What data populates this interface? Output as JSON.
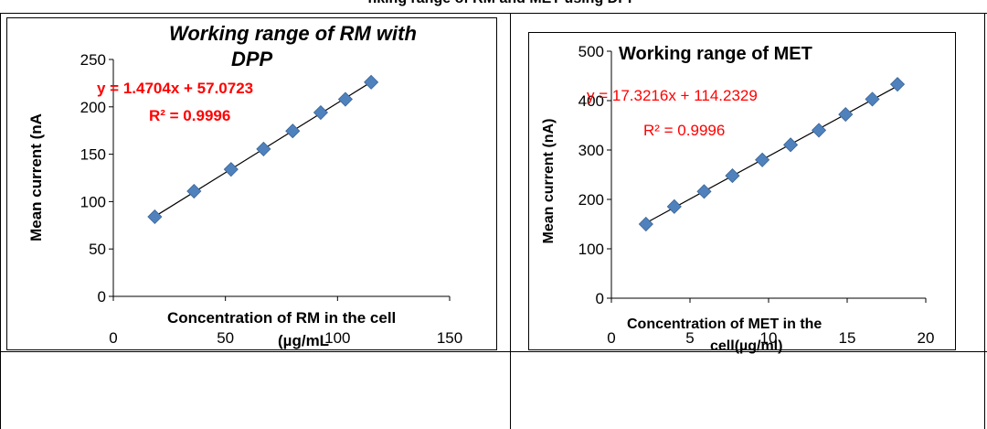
{
  "header_fragment": "nking range of RM and MET using DPP",
  "colors": {
    "marker": "#4F81BD",
    "marker_edge": "#3A6496",
    "trendline": "#000000",
    "equation_text": "#FF0000",
    "axis": "#000000"
  },
  "chart_data": [
    {
      "type": "scatter",
      "marker": "diamond",
      "title": "Working range of RM with DPP",
      "title_lines": [
        "Working range of RM with",
        "DPP"
      ],
      "title_style": "bold-italic",
      "xlabel": "Concentration of RM in the cell",
      "xlabel_line2": "(µg/mL",
      "ylabel": "Mean current (nA",
      "xlim": [
        0,
        150
      ],
      "ylim": [
        0,
        250
      ],
      "xticks": [
        0,
        50,
        100,
        150
      ],
      "yticks": [
        0,
        50,
        100,
        150,
        200,
        250
      ],
      "x": [
        18.5,
        36,
        52.5,
        67,
        80,
        92.5,
        103.5,
        115
      ],
      "y": [
        84,
        111,
        134,
        155.5,
        174.5,
        194,
        208,
        226
      ],
      "trendline": {
        "type": "linear",
        "slope": 1.4704,
        "intercept": 57.0723,
        "x_range": [
          18.5,
          115
        ]
      },
      "equation": "y = 1.4704x + 57.0723",
      "r_squared": "R² = 0.9996",
      "equation_bold": true,
      "grid": false,
      "legend": "none"
    },
    {
      "type": "scatter",
      "marker": "diamond",
      "title": "Working range of MET",
      "title_lines": [
        "Working range of MET"
      ],
      "title_style": "bold",
      "xlabel": "Concentration of MET in the",
      "xlabel_line2": "cell(µg/ml)",
      "ylabel": "Mean current (nA)",
      "xlim": [
        0,
        20
      ],
      "ylim": [
        0,
        500
      ],
      "xticks": [
        0,
        5,
        10,
        15,
        20
      ],
      "yticks": [
        0,
        100,
        200,
        300,
        400,
        500
      ],
      "x": [
        2.2,
        4,
        5.9,
        7.7,
        9.6,
        11.4,
        13.2,
        14.9,
        16.6,
        18.2
      ],
      "y": [
        150,
        185.5,
        216,
        248,
        280,
        310.5,
        340,
        372,
        403,
        433
      ],
      "trendline": {
        "type": "linear",
        "slope": 17.3216,
        "intercept": 114.2329,
        "x_range": [
          2.2,
          18.2
        ]
      },
      "equation": "y = 17.3216x + 114.2329",
      "r_squared": "R² = 0.9996",
      "equation_bold": false,
      "grid": false,
      "legend": "none"
    }
  ]
}
